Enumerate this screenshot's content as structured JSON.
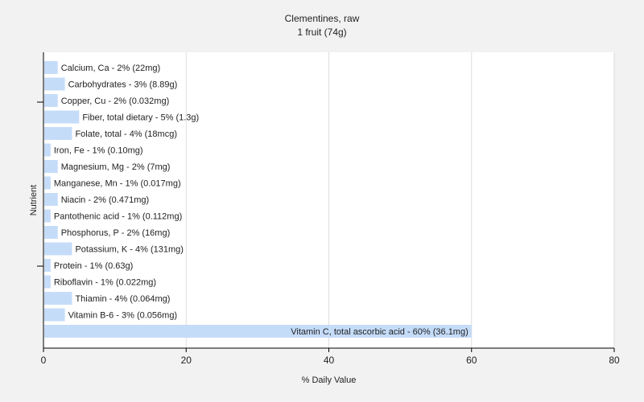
{
  "chart_data": {
    "type": "bar",
    "orientation": "horizontal",
    "title": "Clementines, raw",
    "subtitle": "1 fruit (74g)",
    "xlabel": "% Daily Value",
    "ylabel": "Nutrient",
    "xlim": [
      0,
      80
    ],
    "xticks": [
      0,
      20,
      40,
      60,
      80
    ],
    "grid": true,
    "bar_color": "#c5dcf9",
    "categories": [
      "Calcium, Ca",
      "Carbohydrates",
      "Copper, Cu",
      "Fiber, total dietary",
      "Folate, total",
      "Iron, Fe",
      "Magnesium, Mg",
      "Manganese, Mn",
      "Niacin",
      "Pantothenic acid",
      "Phosphorus, P",
      "Potassium, K",
      "Protein",
      "Riboflavin",
      "Thiamin",
      "Vitamin B-6",
      "Vitamin C, total ascorbic acid"
    ],
    "values": [
      2,
      3,
      2,
      5,
      4,
      1,
      2,
      1,
      2,
      1,
      2,
      4,
      1,
      1,
      4,
      3,
      60
    ],
    "labels": [
      "Calcium, Ca - 2% (22mg)",
      "Carbohydrates - 3% (8.89g)",
      "Copper, Cu - 2% (0.032mg)",
      "Fiber, total dietary - 5% (1.3g)",
      "Folate, total - 4% (18mcg)",
      "Iron, Fe - 1% (0.10mg)",
      "Magnesium, Mg - 2% (7mg)",
      "Manganese, Mn - 1% (0.017mg)",
      "Niacin - 2% (0.471mg)",
      "Pantothenic acid - 1% (0.112mg)",
      "Phosphorus, P - 2% (16mg)",
      "Potassium, K - 4% (131mg)",
      "Protein - 1% (0.63g)",
      "Riboflavin - 1% (0.022mg)",
      "Thiamin - 4% (0.064mg)",
      "Vitamin B-6 - 3% (0.056mg)",
      "Vitamin C, total ascorbic acid - 60% (36.1mg)"
    ]
  }
}
